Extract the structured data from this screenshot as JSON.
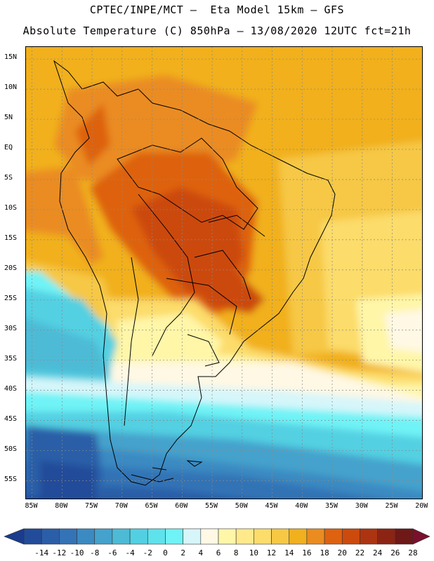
{
  "header": {
    "line1": "CPTEC/INPE/MCT –  Eta Model 15km – GFS",
    "line2": "Absolute Temperature (C) 850hPa – 13/08/2020 12UTC fct=21h"
  },
  "map": {
    "lat_ticks": [
      {
        "value": 15,
        "label": "15N"
      },
      {
        "value": 10,
        "label": "10N"
      },
      {
        "value": 5,
        "label": "5N"
      },
      {
        "value": 0,
        "label": "EQ"
      },
      {
        "value": -5,
        "label": "5S"
      },
      {
        "value": -10,
        "label": "10S"
      },
      {
        "value": -15,
        "label": "15S"
      },
      {
        "value": -20,
        "label": "20S"
      },
      {
        "value": -25,
        "label": "25S"
      },
      {
        "value": -30,
        "label": "30S"
      },
      {
        "value": -35,
        "label": "35S"
      },
      {
        "value": -40,
        "label": "40S"
      },
      {
        "value": -45,
        "label": "45S"
      },
      {
        "value": -50,
        "label": "50S"
      },
      {
        "value": -55,
        "label": "55S"
      }
    ],
    "lon_ticks": [
      {
        "value": -85,
        "label": "85W"
      },
      {
        "value": -80,
        "label": "80W"
      },
      {
        "value": -75,
        "label": "75W"
      },
      {
        "value": -70,
        "label": "70W"
      },
      {
        "value": -65,
        "label": "65W"
      },
      {
        "value": -60,
        "label": "60W"
      },
      {
        "value": -55,
        "label": "55W"
      },
      {
        "value": -50,
        "label": "50W"
      },
      {
        "value": -45,
        "label": "45W"
      },
      {
        "value": -40,
        "label": "40W"
      },
      {
        "value": -35,
        "label": "35W"
      },
      {
        "value": -30,
        "label": "30W"
      },
      {
        "value": -25,
        "label": "25W"
      },
      {
        "value": -20,
        "label": "20W"
      }
    ],
    "extent": {
      "lon_min": -86,
      "lon_max": -19.8,
      "lat_min": -58.2,
      "lat_max": 17
    },
    "gridlines": true
  },
  "colorbar": {
    "labels": [
      "-14",
      "-12",
      "-10",
      "-8",
      "-6",
      "-4",
      "-2",
      "0",
      "2",
      "4",
      "6",
      "8",
      "10",
      "12",
      "14",
      "16",
      "18",
      "20",
      "22",
      "24",
      "26",
      "28"
    ],
    "colors": [
      "#1a3c8c",
      "#224c9a",
      "#2b5ea8",
      "#3373b6",
      "#3b8ac2",
      "#45a2cc",
      "#4dbbd6",
      "#52d0e2",
      "#5ee2ec",
      "#6ff3f6",
      "#d6f6fa",
      "#fff8e4",
      "#fff6a8",
      "#ffe98a",
      "#fcdc6a",
      "#f6c844",
      "#f1b01e",
      "#ea8c20",
      "#de6210",
      "#cc4a0c",
      "#ad3410",
      "#8c2414",
      "#6e1818",
      "#7a0f2e"
    ]
  }
}
